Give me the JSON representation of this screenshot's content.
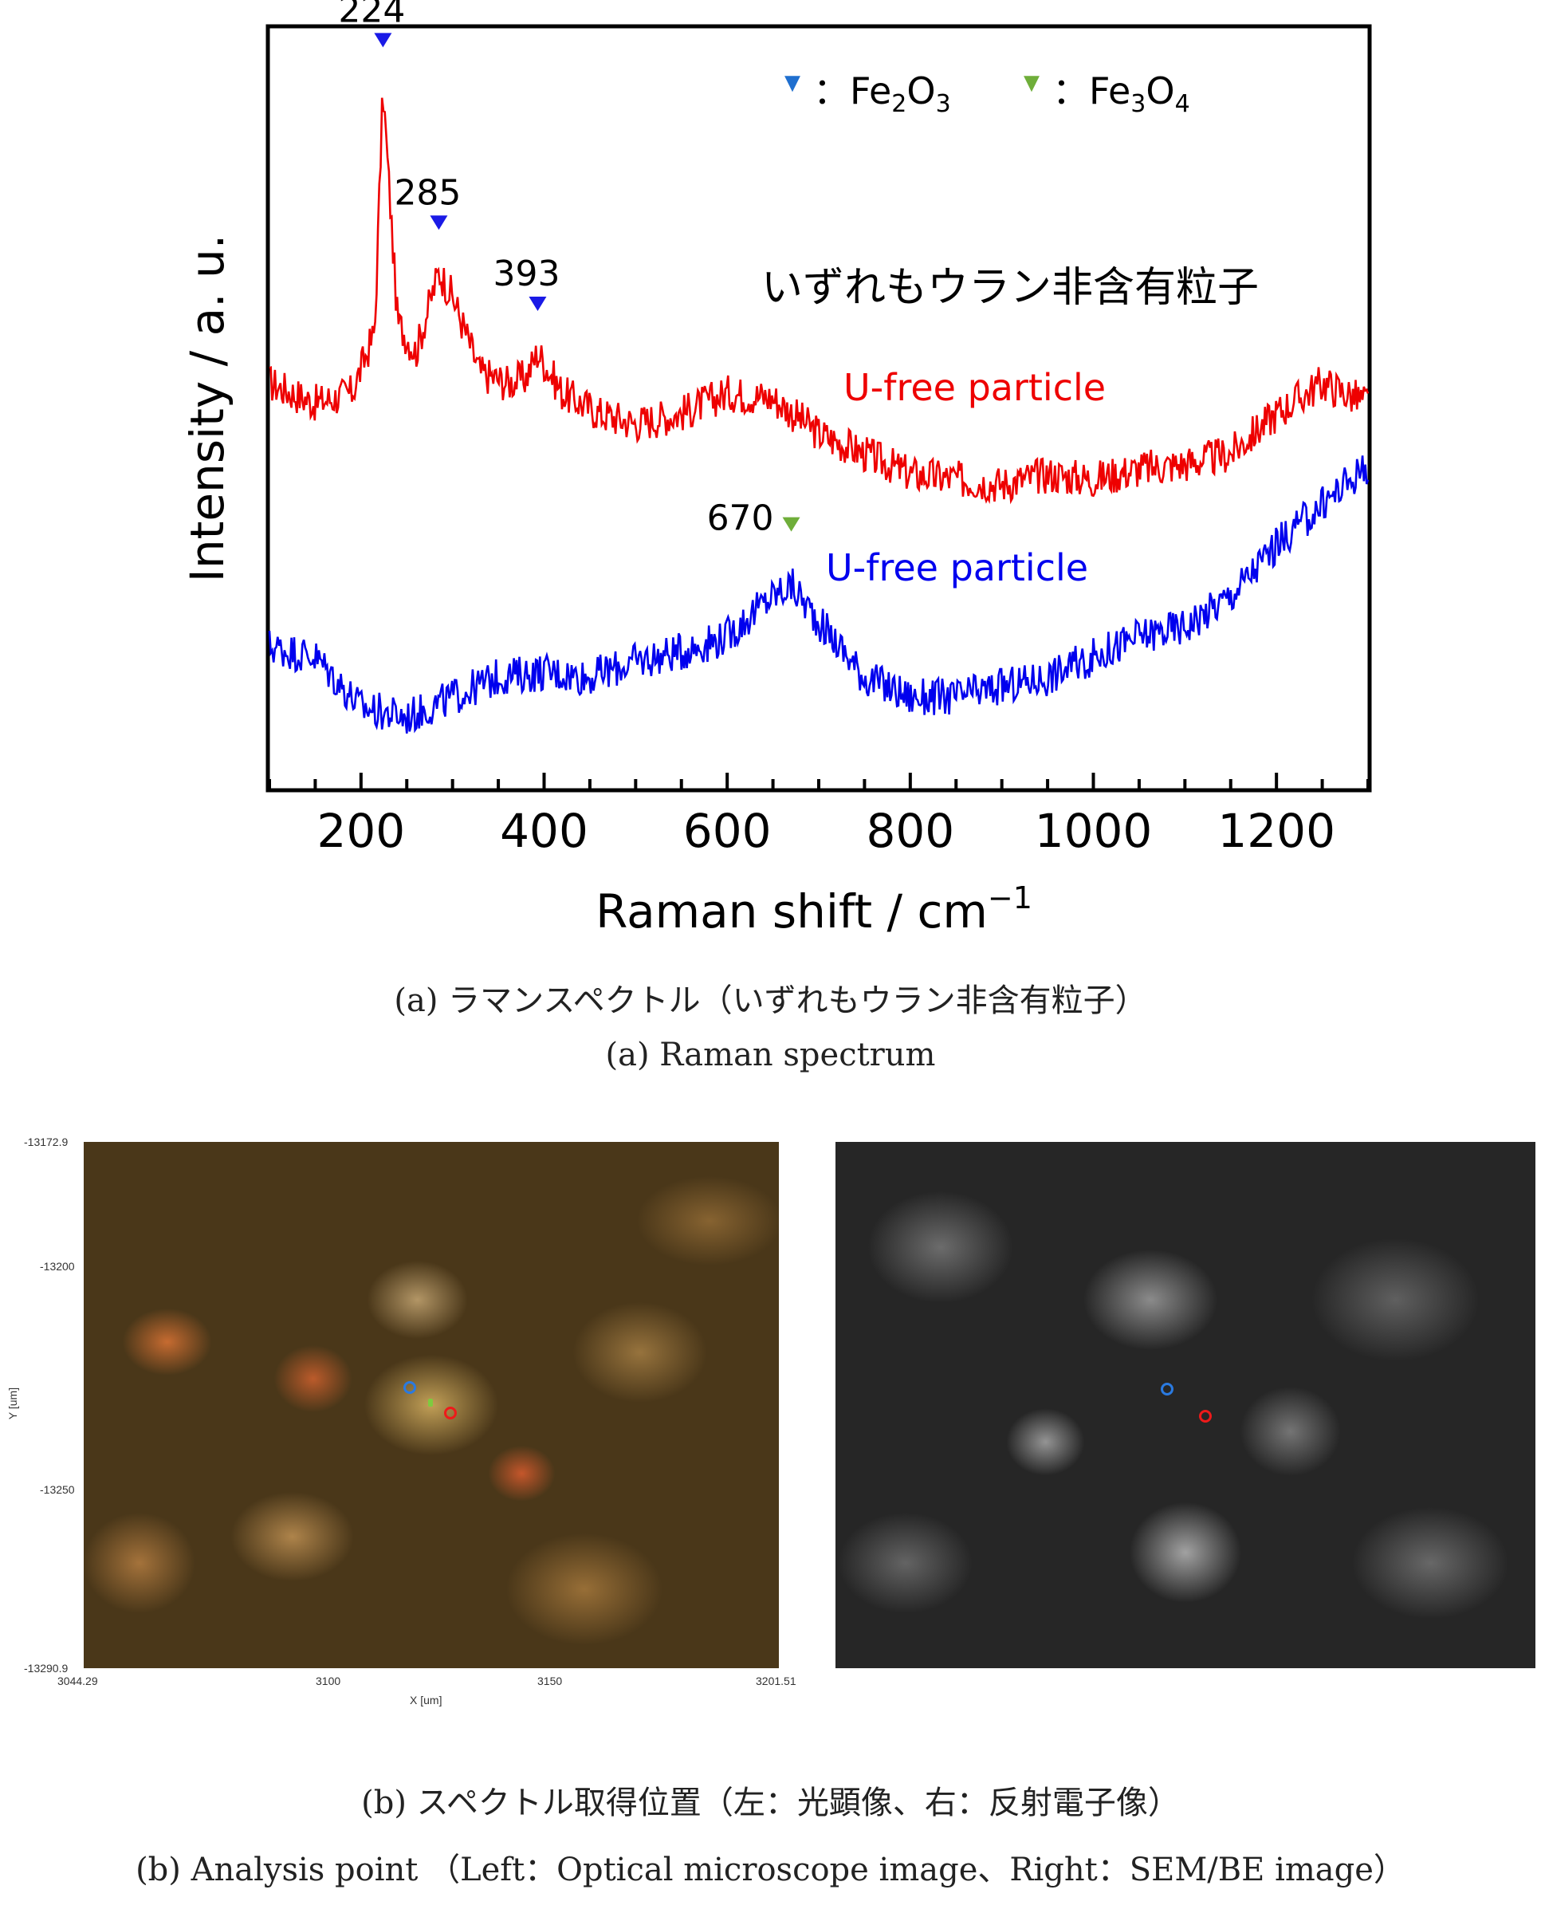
{
  "chart_data": {
    "type": "line",
    "xlabel": "Raman shift / cm",
    "xlabel_sup": "−1",
    "ylabel": "Intensity / a. u.",
    "xlim": [
      100,
      1300
    ],
    "xticks": [
      200,
      400,
      600,
      800,
      1000,
      1200
    ],
    "grid": false,
    "annotation_jp": "いずれもウラン非含有粒子",
    "legend": [
      {
        "marker": "▼",
        "color": "#1f6fcf",
        "sep": "：",
        "base1": "Fe",
        "sub1": "2",
        "base2": "O",
        "sub2": "3"
      },
      {
        "marker": "▼",
        "color": "#6fae3a",
        "sep": "：",
        "base1": "Fe",
        "sub1": "3",
        "base2": "O",
        "sub2": "4"
      }
    ],
    "series": [
      {
        "label": "U-free particle",
        "color": "#ee0000",
        "x": [
          100,
          150,
          190,
          215,
          224,
          240,
          260,
          285,
          300,
          330,
          360,
          380,
          393,
          420,
          460,
          500,
          550,
          600,
          650,
          700,
          750,
          800,
          850,
          900,
          950,
          1000,
          1050,
          1100,
          1150,
          1200,
          1250,
          1300
        ],
        "y": [
          0.8,
          0.76,
          0.78,
          0.9,
          1.38,
          0.92,
          0.86,
          1.02,
          0.97,
          0.82,
          0.8,
          0.81,
          0.86,
          0.78,
          0.74,
          0.72,
          0.74,
          0.78,
          0.77,
          0.7,
          0.66,
          0.62,
          0.61,
          0.6,
          0.62,
          0.61,
          0.63,
          0.64,
          0.66,
          0.74,
          0.8,
          0.76
        ]
      },
      {
        "label": "U-free particle",
        "color": "#0000ee",
        "x": [
          100,
          150,
          200,
          250,
          300,
          350,
          400,
          450,
          500,
          550,
          600,
          650,
          670,
          700,
          750,
          800,
          850,
          900,
          950,
          1000,
          1050,
          1100,
          1150,
          1200,
          1250,
          1300
        ],
        "y": [
          0.28,
          0.26,
          0.16,
          0.14,
          0.18,
          0.22,
          0.23,
          0.22,
          0.25,
          0.27,
          0.3,
          0.38,
          0.4,
          0.33,
          0.22,
          0.18,
          0.18,
          0.2,
          0.22,
          0.26,
          0.3,
          0.32,
          0.38,
          0.48,
          0.56,
          0.64
        ]
      }
    ],
    "peaks": [
      {
        "x": 224,
        "label": "224",
        "color": "#1a1ae6",
        "series": 0
      },
      {
        "x": 285,
        "label": "285",
        "color": "#1a1ae6",
        "series": 0
      },
      {
        "x": 393,
        "label": "393",
        "color": "#1a1ae6",
        "series": 0
      },
      {
        "x": 670,
        "label": "670",
        "color": "#6fae3a",
        "series": 1
      }
    ]
  },
  "caption_a_jp": "(a) ラマンスペクトル（いずれもウラン非含有粒子）",
  "caption_a_en": "(a) Raman spectrum",
  "optical": {
    "y_ticks": [
      "-13172.9",
      "-13200",
      "-13250",
      "-13290.9"
    ],
    "x_ticks": [
      "3044.29",
      "3100",
      "3150",
      "3201.51"
    ],
    "x_label": "X [um]",
    "y_label": "Y [um]"
  },
  "caption_b_jp": "(b) スペクトル取得位置（左：光顕像、右：反射電子像）",
  "caption_b_en": "(b) Analysis point （Left：Optical microscope image、Right：SEM/BE image）"
}
